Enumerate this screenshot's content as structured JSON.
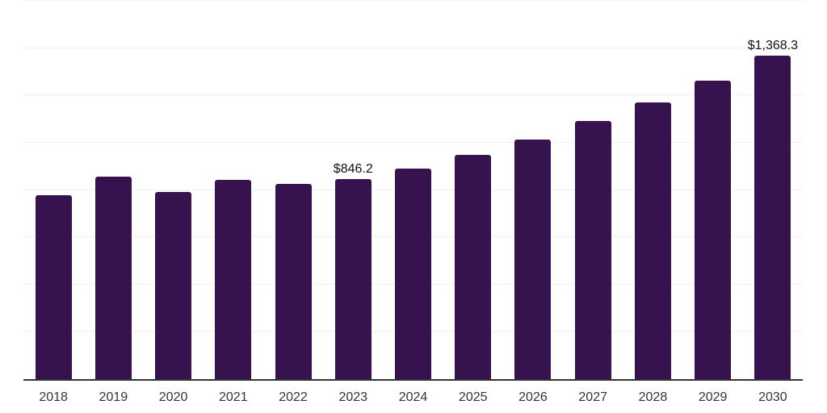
{
  "chart_data": {
    "type": "bar",
    "title": "",
    "xlabel": "",
    "ylabel": "",
    "categories": [
      "2018",
      "2019",
      "2020",
      "2021",
      "2022",
      "2023",
      "2024",
      "2025",
      "2026",
      "2027",
      "2028",
      "2029",
      "2030"
    ],
    "values": [
      779,
      855,
      790,
      843,
      824,
      846.2,
      892,
      947,
      1013,
      1093,
      1170,
      1263,
      1368.3
    ],
    "data_labels": [
      "",
      "",
      "",
      "",
      "",
      "$846.2",
      "",
      "",
      "",
      "",
      "",
      "",
      "$1,368.3"
    ],
    "ylim": [
      0,
      1600
    ],
    "gridline_step": 200,
    "grid": "horizontal",
    "legend_position": "none",
    "y_tick_labels_visible": false,
    "colors": {
      "bar": "#36124E",
      "axis_line": "#333333",
      "gridline": "#F0F0F0",
      "tick_label": "#333333",
      "data_label": "#111111",
      "background": "#FFFFFF"
    }
  }
}
